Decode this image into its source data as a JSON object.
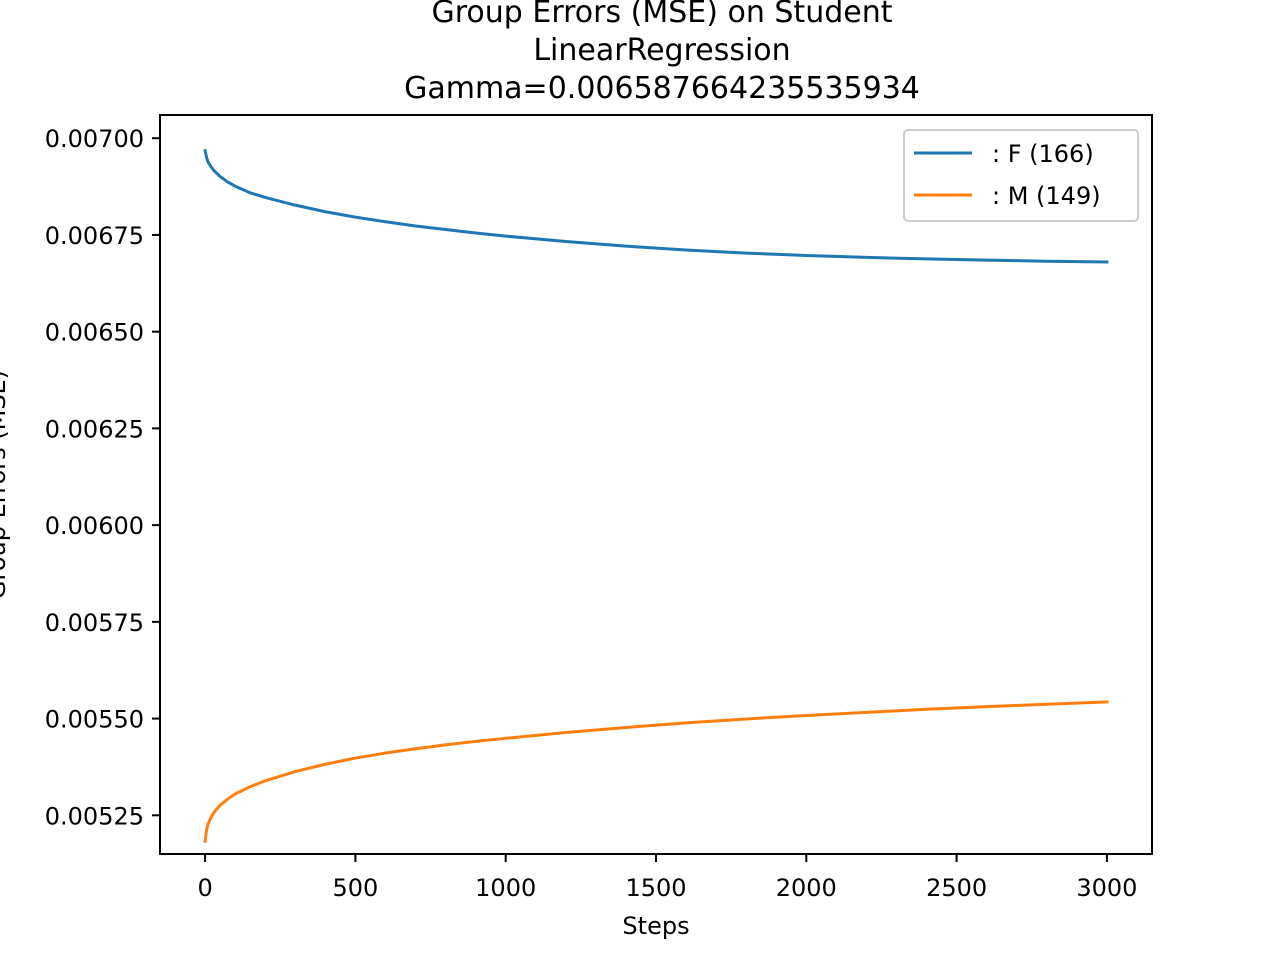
{
  "chart_data": {
    "type": "line",
    "title": [
      "Group Errors (MSE) on Student",
      "LinearRegression",
      "Gamma=0.006587664235535934"
    ],
    "xlabel": "Steps",
    "ylabel": "Group Errors (MSE)",
    "xlim": [
      -150,
      3150
    ],
    "ylim": [
      0.00515,
      0.00706
    ],
    "xticks": [
      0,
      500,
      1000,
      1500,
      2000,
      2500,
      3000
    ],
    "xtick_labels": [
      "0",
      "500",
      "1000",
      "1500",
      "2000",
      "2500",
      "3000"
    ],
    "yticks": [
      0.00525,
      0.0055,
      0.00575,
      0.006,
      0.00625,
      0.0065,
      0.00675,
      0.007
    ],
    "ytick_labels": [
      "0.00525",
      "0.00550",
      "0.00575",
      "0.00600",
      "0.00625",
      "0.00650",
      "0.00675",
      "0.00700"
    ],
    "grid": false,
    "legend_position": "upper right",
    "series": [
      {
        "name": ": F  (166)",
        "color": "#1f77b4",
        "x": [
          0,
          5,
          10,
          20,
          30,
          50,
          75,
          100,
          150,
          200,
          300,
          400,
          500,
          600,
          700,
          800,
          900,
          1000,
          1200,
          1400,
          1600,
          1800,
          2000,
          2200,
          2400,
          2600,
          2800,
          3000
        ],
        "y": [
          0.006968,
          0.00695,
          0.006938,
          0.006926,
          0.006916,
          0.006901,
          0.006887,
          0.006876,
          0.006859,
          0.006847,
          0.006827,
          0.00681,
          0.006796,
          0.006784,
          0.006773,
          0.006764,
          0.006755,
          0.006747,
          0.006733,
          0.006721,
          0.006711,
          0.006703,
          0.006697,
          0.006692,
          0.006688,
          0.006685,
          0.006682,
          0.00668
        ]
      },
      {
        "name": ": M  (149)",
        "color": "#ff7f0e",
        "x": [
          0,
          5,
          10,
          20,
          30,
          50,
          75,
          100,
          150,
          200,
          300,
          400,
          500,
          600,
          700,
          800,
          900,
          1000,
          1200,
          1400,
          1600,
          1800,
          2000,
          2200,
          2400,
          2600,
          2800,
          3000
        ],
        "y": [
          0.005183,
          0.005212,
          0.005228,
          0.005245,
          0.005258,
          0.005276,
          0.005292,
          0.005305,
          0.005324,
          0.005339,
          0.005363,
          0.005382,
          0.005398,
          0.005411,
          0.005422,
          0.005432,
          0.005441,
          0.005449,
          0.005464,
          0.005477,
          0.005489,
          0.005499,
          0.005508,
          0.005516,
          0.005524,
          0.005531,
          0.005537,
          0.005543
        ]
      }
    ]
  }
}
